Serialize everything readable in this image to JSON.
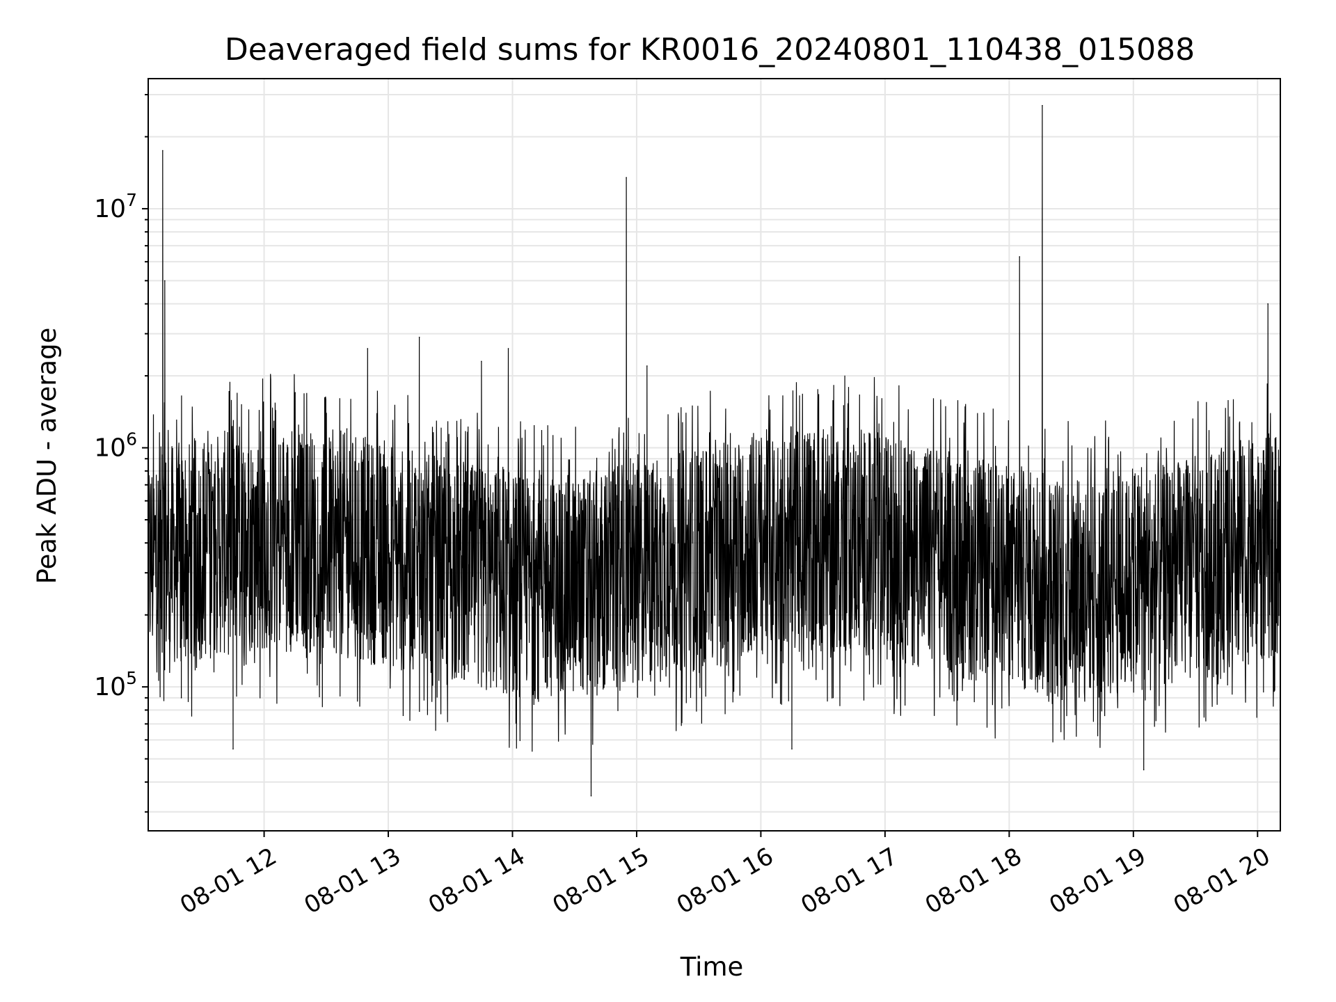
{
  "chart_data": {
    "type": "line",
    "title": "Deaveraged field sums for KR0016_20240801_110438_015088",
    "xlabel": "Time",
    "ylabel": "Peak ADU - average",
    "y_scale": "log",
    "ylim": [
      25000,
      35000000
    ],
    "xlim": [
      "2024-08-01 11:04",
      "2024-08-01 20:11"
    ],
    "x_ticks": [
      {
        "label": "08-01 12",
        "time": "2024-08-01 12:00"
      },
      {
        "label": "08-01 13",
        "time": "2024-08-01 13:00"
      },
      {
        "label": "08-01 14",
        "time": "2024-08-01 14:00"
      },
      {
        "label": "08-01 15",
        "time": "2024-08-01 15:00"
      },
      {
        "label": "08-01 16",
        "time": "2024-08-01 16:00"
      },
      {
        "label": "08-01 17",
        "time": "2024-08-01 17:00"
      },
      {
        "label": "08-01 18",
        "time": "2024-08-01 18:00"
      },
      {
        "label": "08-01 19",
        "time": "2024-08-01 19:00"
      },
      {
        "label": "08-01 20",
        "time": "2024-08-01 20:00"
      }
    ],
    "y_ticks": [
      {
        "base": "10",
        "exp": "5",
        "value": 100000
      },
      {
        "base": "10",
        "exp": "6",
        "value": 1000000
      },
      {
        "base": "10",
        "exp": "7",
        "value": 10000000
      }
    ],
    "grid": true,
    "line_color": "#000000",
    "grid_color": "#e6e6e6",
    "series": [
      {
        "x": [
          "2024-08-01 11:04",
          "2024-08-01 11:10",
          "2024-08-01 11:11",
          "2024-08-01 11:12",
          "2024-08-01 11:13",
          "2024-08-01 11:20",
          "2024-08-01 11:30",
          "2024-08-01 11:40",
          "2024-08-01 11:45",
          "2024-08-01 11:50",
          "2024-08-01 12:00",
          "2024-08-01 12:15",
          "2024-08-01 12:20",
          "2024-08-01 12:30",
          "2024-08-01 12:40",
          "2024-08-01 12:45",
          "2024-08-01 12:50",
          "2024-08-01 13:00",
          "2024-08-01 13:10",
          "2024-08-01 13:15",
          "2024-08-01 13:20",
          "2024-08-01 13:30",
          "2024-08-01 13:40",
          "2024-08-01 13:45",
          "2024-08-01 13:50",
          "2024-08-01 13:58",
          "2024-08-01 14:10",
          "2024-08-01 14:20",
          "2024-08-01 14:30",
          "2024-08-01 14:38",
          "2024-08-01 14:45",
          "2024-08-01 14:50",
          "2024-08-01 14:55",
          "2024-08-01 14:56",
          "2024-08-01 14:57",
          "2024-08-01 15:05",
          "2024-08-01 15:10",
          "2024-08-01 15:20",
          "2024-08-01 15:30",
          "2024-08-01 15:40",
          "2024-08-01 15:50",
          "2024-08-01 15:55",
          "2024-08-01 16:00",
          "2024-08-01 16:10",
          "2024-08-01 16:15",
          "2024-08-01 16:20",
          "2024-08-01 16:30",
          "2024-08-01 16:40",
          "2024-08-01 16:50",
          "2024-08-01 17:00",
          "2024-08-01 17:10",
          "2024-08-01 17:20",
          "2024-08-01 17:30",
          "2024-08-01 17:40",
          "2024-08-01 17:50",
          "2024-08-01 18:00",
          "2024-08-01 18:05",
          "2024-08-01 18:06",
          "2024-08-01 18:10",
          "2024-08-01 18:16",
          "2024-08-01 18:17",
          "2024-08-01 18:20",
          "2024-08-01 18:30",
          "2024-08-01 18:40",
          "2024-08-01 18:50",
          "2024-08-01 19:00",
          "2024-08-01 19:05",
          "2024-08-01 19:10",
          "2024-08-01 19:20",
          "2024-08-01 19:30",
          "2024-08-01 19:40",
          "2024-08-01 19:50",
          "2024-08-01 20:00",
          "2024-08-01 20:05",
          "2024-08-01 20:10"
        ],
        "values": [
          280000,
          350000,
          17500000,
          5000000,
          300000,
          90000,
          300000,
          250000,
          55000,
          250000,
          300000,
          1700000,
          350000,
          300000,
          1200000,
          800000,
          2600000,
          380000,
          350000,
          2900000,
          300000,
          380000,
          800000,
          2300000,
          300000,
          2600000,
          600000,
          350000,
          300000,
          35000,
          600000,
          700000,
          13500000,
          1000000,
          900000,
          2200000,
          700000,
          400000,
          600000,
          400000,
          650000,
          150000,
          180000,
          350000,
          55000,
          320000,
          400000,
          1500000,
          600000,
          500000,
          300000,
          250000,
          400000,
          300000,
          600000,
          400000,
          6300000,
          800000,
          700000,
          27000000,
          900000,
          600000,
          400000,
          300000,
          200000,
          120000,
          45000,
          200000,
          150000,
          250000,
          300000,
          350000,
          600000,
          4000000,
          550000
        ]
      }
    ]
  }
}
